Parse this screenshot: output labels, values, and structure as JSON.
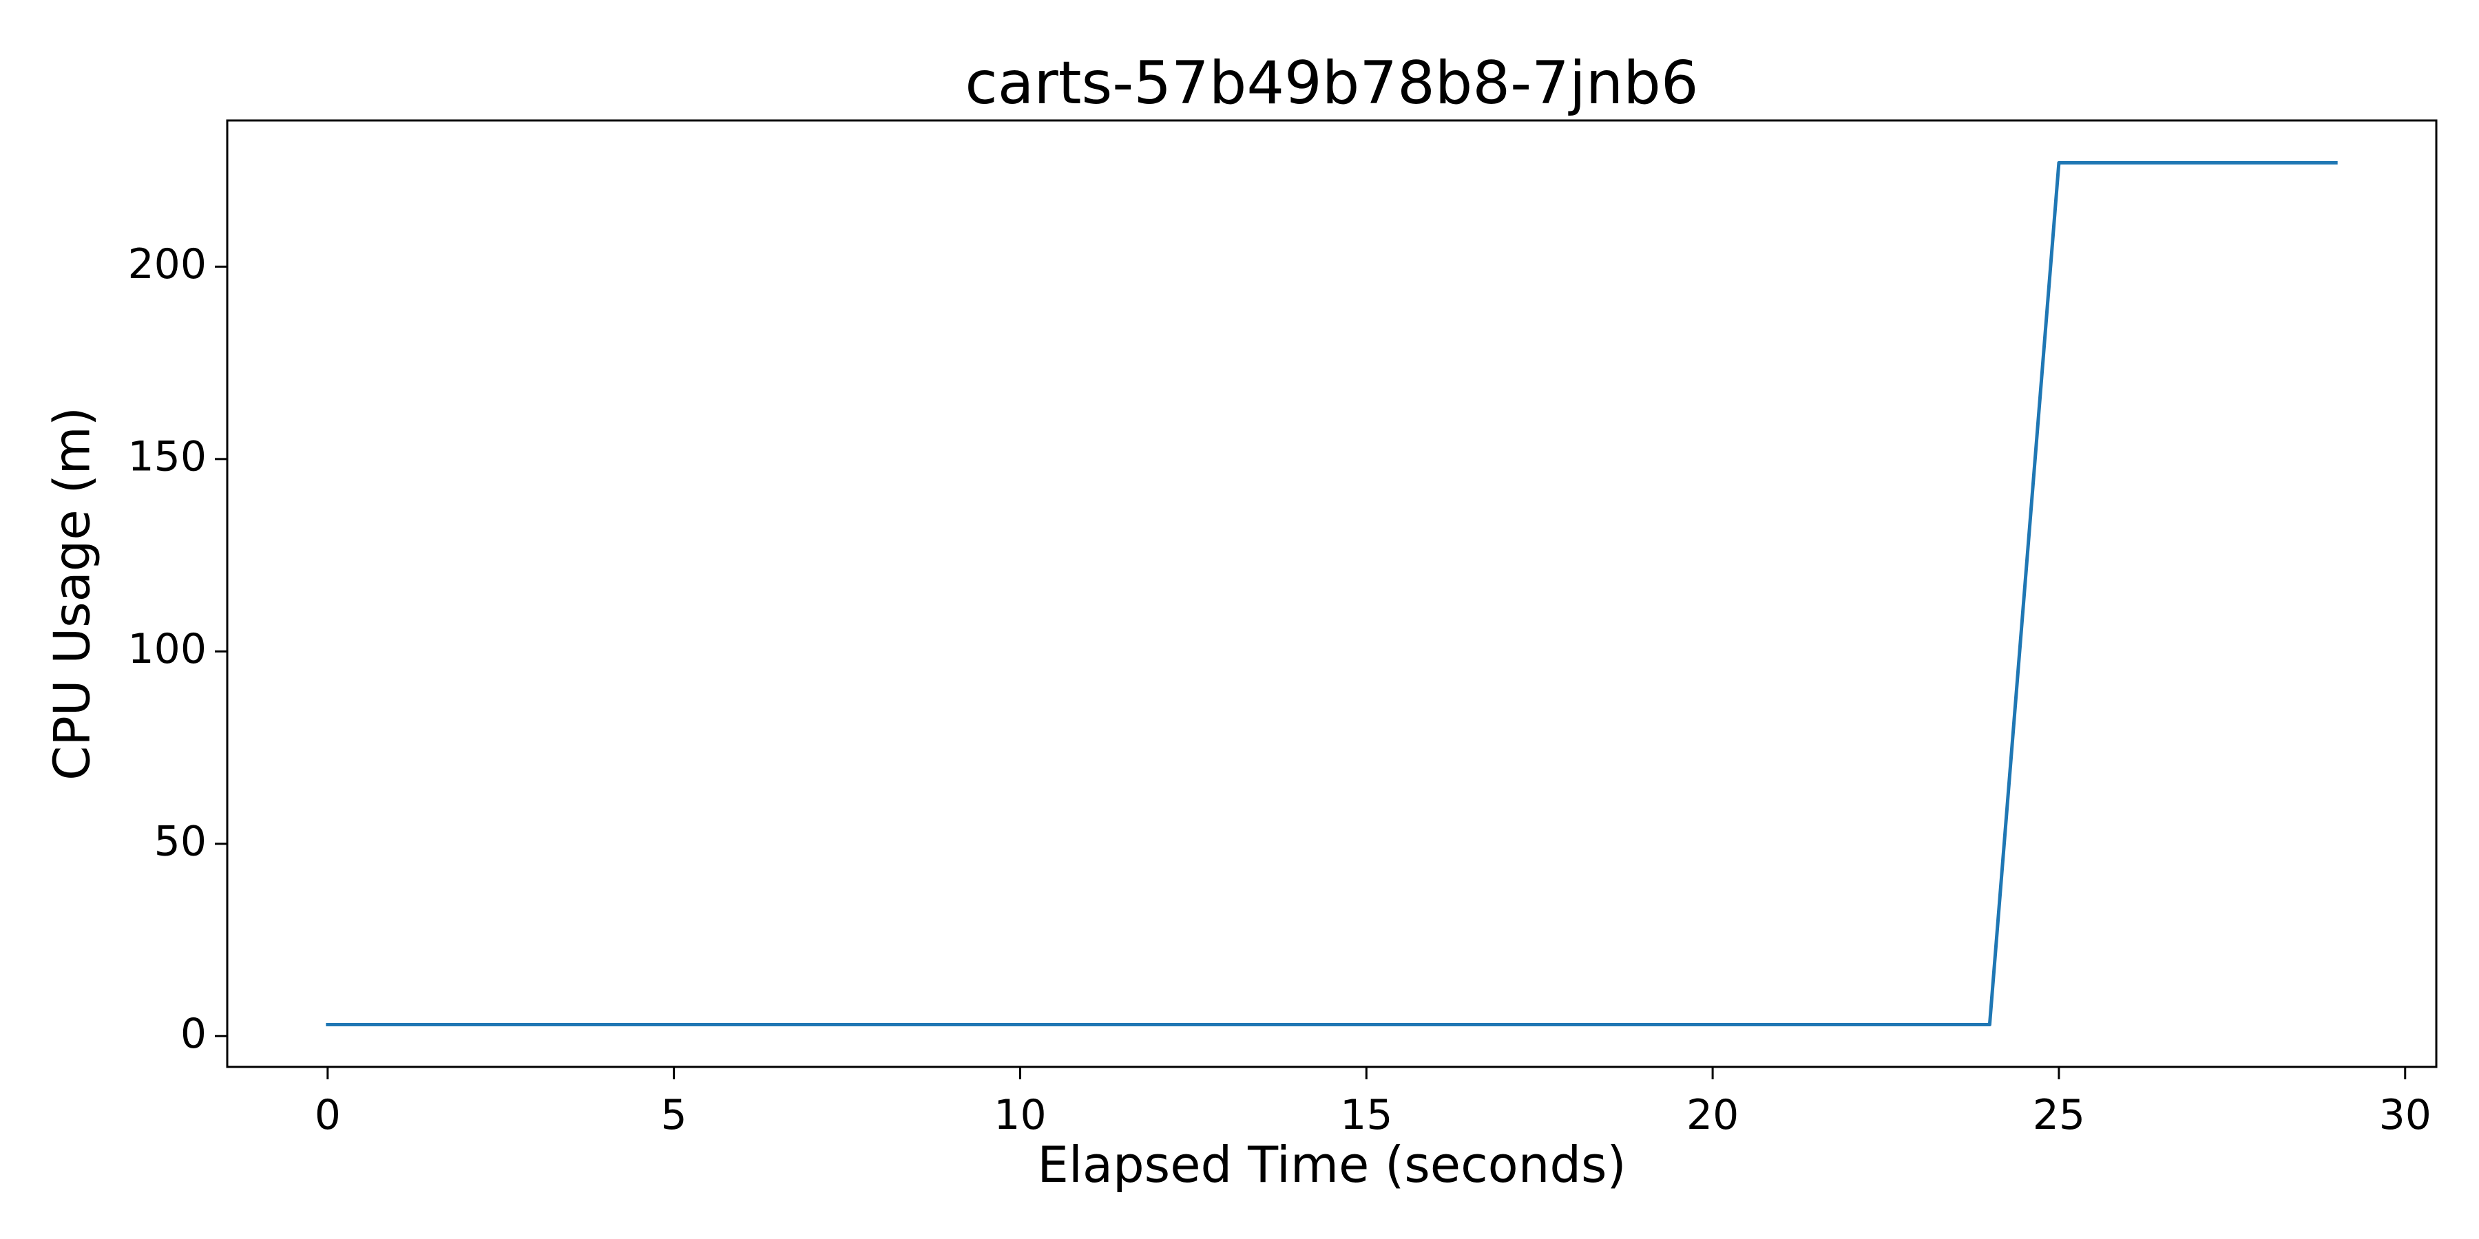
{
  "chart_data": {
    "type": "line",
    "title": "carts-57b49b78b8-7jnb6",
    "xlabel": "Elapsed Time (seconds)",
    "ylabel": "CPU Usage (m)",
    "xlim": [
      -1.45,
      30.45
    ],
    "ylim": [
      -8,
      238
    ],
    "xticks": [
      0,
      5,
      10,
      15,
      20,
      25,
      30
    ],
    "yticks": [
      0,
      50,
      100,
      150,
      200
    ],
    "grid": false,
    "series": [
      {
        "color": "#1f77b4",
        "x": [
          0,
          24,
          25,
          29
        ],
        "y": [
          3,
          3,
          227,
          227
        ]
      }
    ]
  }
}
